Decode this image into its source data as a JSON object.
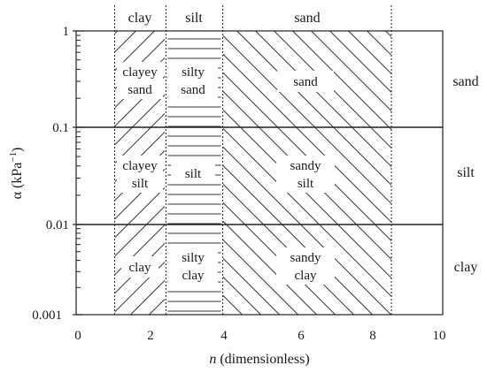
{
  "x_axis": {
    "title_italic": "n",
    "title_rest": " (dimensionless)",
    "ticks": [
      "0",
      "2",
      "4",
      "6",
      "8",
      "10"
    ],
    "range": [
      0,
      10
    ]
  },
  "y_axis": {
    "title": "α (kPa",
    "title_exponent": "−1",
    "title_close": ")",
    "ticks": [
      "1",
      "0.1",
      "0.01",
      "0.001"
    ],
    "scale": "log",
    "range": [
      0.001,
      1
    ]
  },
  "column_boundaries_n": [
    1.05,
    2.45,
    4.0,
    8.6
  ],
  "top_labels": [
    "clay",
    "silt",
    "sand"
  ],
  "right_labels": [
    "sand",
    "silt",
    "clay"
  ],
  "region_labels": {
    "row1": [
      "clayey",
      "sand",
      "silty",
      "sand",
      "sand"
    ],
    "row2": [
      "clayey",
      "silt",
      "silt",
      "sandy",
      "silt"
    ],
    "row3": [
      "clay",
      "silty",
      "clay",
      "sandy",
      "clay"
    ]
  },
  "hatching": {
    "column_1": "diagonal (forward)",
    "column_2": "horizontal",
    "column_3": "diagonal (backward)"
  }
}
